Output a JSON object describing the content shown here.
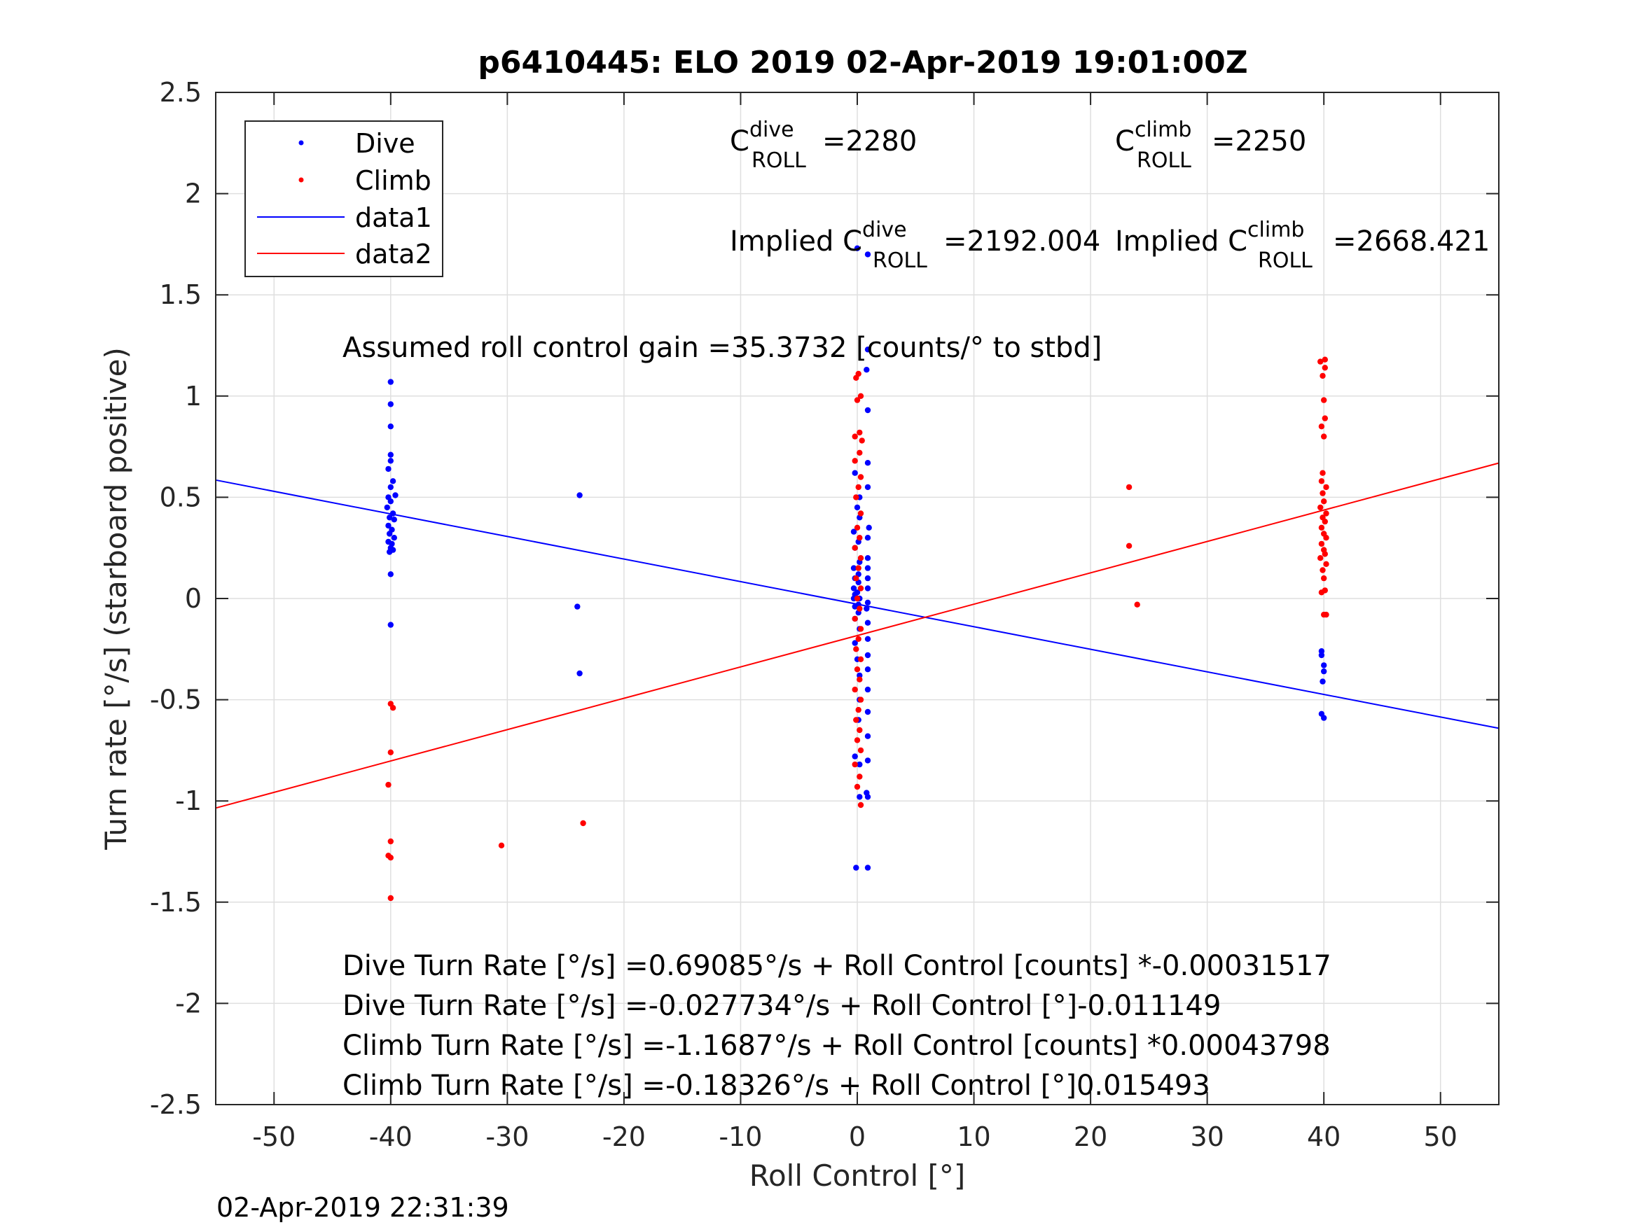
{
  "title": "p6410445: ELO 2019 02-Apr-2019 19:01:00Z",
  "timestamp": "02-Apr-2019 22:31:39",
  "annotations": {
    "c_roll_dive": {
      "base": "C",
      "sup": "dive",
      "sub": "ROLL",
      "value": "=2280"
    },
    "c_roll_climb": {
      "base": "C",
      "sup": "climb",
      "sub": "ROLL",
      "value": "=2250"
    },
    "implied_dive": {
      "prefix": "Implied C",
      "sup": "dive",
      "sub": "ROLL",
      "value": "=2192.004"
    },
    "implied_climb": {
      "prefix": "Implied C",
      "sup": "climb",
      "sub": "ROLL",
      "value": "=2668.421"
    },
    "gain": "Assumed roll control gain =35.3732 [counts/° to stbd]",
    "fit_lines": [
      "Dive Turn Rate [°/s] =0.69085°/s + Roll Control [counts] *-0.00031517",
      "Dive Turn Rate [°/s] =-0.027734°/s + Roll Control [°]-0.011149",
      "Climb Turn Rate [°/s] =-1.1687°/s + Roll Control [counts] *0.00043798",
      "Climb Turn Rate [°/s] =-0.18326°/s + Roll Control [°]0.015493"
    ]
  },
  "colors": {
    "dive": "#0000ff",
    "climb": "#ff0000",
    "grid": "#dfdfdf",
    "axis": "#262626"
  },
  "chart_data": {
    "type": "scatter",
    "title": "p6410445: ELO 2019 02-Apr-2019 19:01:00Z",
    "xlabel": "Roll Control [°]",
    "ylabel": "Turn rate [°/s] (starboard positive)",
    "xlim": [
      -55,
      55
    ],
    "ylim": [
      -2.5,
      2.5
    ],
    "xticks": [
      -50,
      -40,
      -30,
      -20,
      -10,
      0,
      10,
      20,
      30,
      40,
      50
    ],
    "xtick_labels": [
      "-50",
      "-40",
      "-30",
      "-20",
      "-10",
      "0",
      "10",
      "20",
      "30",
      "40",
      "50"
    ],
    "yticks": [
      2.5,
      2,
      1.5,
      1,
      0.5,
      0,
      -0.5,
      -1,
      -1.5,
      -2,
      -2.5
    ],
    "ytick_labels": [
      "2.5",
      "2",
      "1.5",
      "1",
      "0.5",
      "0",
      "-0.5",
      "-1",
      "-1.5",
      "-2",
      "-2.5"
    ],
    "grid": true,
    "legend_position": "top-left",
    "legend": [
      "Dive",
      "Climb",
      "data1",
      "data2"
    ],
    "series": [
      {
        "name": "Dive",
        "kind": "points",
        "color": "#0000ff",
        "points": [
          [
            -40,
            1.07
          ],
          [
            -40,
            0.96
          ],
          [
            -40,
            0.85
          ],
          [
            -40,
            0.71
          ],
          [
            -40,
            0.68
          ],
          [
            -40.2,
            0.64
          ],
          [
            -39.8,
            0.58
          ],
          [
            -40,
            0.55
          ],
          [
            -39.6,
            0.51
          ],
          [
            -40.2,
            0.5
          ],
          [
            -40,
            0.48
          ],
          [
            -40.3,
            0.45
          ],
          [
            -39.8,
            0.42
          ],
          [
            -40.1,
            0.4
          ],
          [
            -39.7,
            0.39
          ],
          [
            -40.2,
            0.36
          ],
          [
            -39.9,
            0.34
          ],
          [
            -40.1,
            0.32
          ],
          [
            -39.7,
            0.3
          ],
          [
            -40.2,
            0.28
          ],
          [
            -39.9,
            0.27
          ],
          [
            -40,
            0.25
          ],
          [
            -39.8,
            0.24
          ],
          [
            -40.1,
            0.23
          ],
          [
            -40,
            0.12
          ],
          [
            -40,
            -0.13
          ],
          [
            -23.8,
            0.51
          ],
          [
            -24,
            -0.04
          ],
          [
            -23.8,
            -0.37
          ],
          [
            0,
            1.73
          ],
          [
            0.9,
            1.7
          ],
          [
            0.9,
            1.23
          ],
          [
            0.8,
            1.13
          ],
          [
            0.9,
            0.93
          ],
          [
            0.9,
            0.67
          ],
          [
            -0.2,
            0.62
          ],
          [
            0.9,
            0.55
          ],
          [
            0.2,
            0.5
          ],
          [
            0,
            0.45
          ],
          [
            0.2,
            0.4
          ],
          [
            1,
            0.35
          ],
          [
            -0.3,
            0.33
          ],
          [
            0.9,
            0.3
          ],
          [
            0.1,
            0.28
          ],
          [
            -0.2,
            0.25
          ],
          [
            0.9,
            0.2
          ],
          [
            0.2,
            0.18
          ],
          [
            -0.3,
            0.15
          ],
          [
            0.9,
            0.15
          ],
          [
            0.1,
            0.12
          ],
          [
            -0.2,
            0.1
          ],
          [
            0.9,
            0.1
          ],
          [
            0.1,
            0.08
          ],
          [
            -0.3,
            0.05
          ],
          [
            0.9,
            0.05
          ],
          [
            0,
            0.03
          ],
          [
            -0.2,
            0.02
          ],
          [
            0.2,
            0.0
          ],
          [
            -0.3,
            0.0
          ],
          [
            0.9,
            -0.02
          ],
          [
            0.1,
            -0.03
          ],
          [
            -0.2,
            -0.04
          ],
          [
            0.8,
            -0.05
          ],
          [
            0.1,
            -0.07
          ],
          [
            -0.2,
            -0.1
          ],
          [
            0.9,
            -0.12
          ],
          [
            0.2,
            -0.15
          ],
          [
            0.9,
            -0.2
          ],
          [
            -0.2,
            -0.22
          ],
          [
            0.9,
            -0.28
          ],
          [
            0,
            -0.3
          ],
          [
            0.9,
            -0.35
          ],
          [
            0.2,
            -0.38
          ],
          [
            0.9,
            -0.45
          ],
          [
            0.2,
            -0.5
          ],
          [
            0.9,
            -0.56
          ],
          [
            0.1,
            -0.6
          ],
          [
            0.9,
            -0.68
          ],
          [
            -0.2,
            -0.78
          ],
          [
            0.9,
            -0.8
          ],
          [
            0.2,
            -0.82
          ],
          [
            0.8,
            -0.96
          ],
          [
            0.2,
            -0.98
          ],
          [
            0.9,
            -0.98
          ],
          [
            -0.1,
            -1.33
          ],
          [
            0.9,
            -1.33
          ],
          [
            39.8,
            -0.26
          ],
          [
            39.8,
            -0.28
          ],
          [
            40,
            -0.33
          ],
          [
            40,
            -0.36
          ],
          [
            39.9,
            -0.41
          ],
          [
            39.8,
            -0.57
          ],
          [
            40,
            -0.59
          ]
        ]
      },
      {
        "name": "Climb",
        "kind": "points",
        "color": "#ff0000",
        "points": [
          [
            -40,
            -0.52
          ],
          [
            -39.8,
            -0.54
          ],
          [
            -40,
            -0.76
          ],
          [
            -40.2,
            -0.92
          ],
          [
            -40,
            -1.2
          ],
          [
            -40.2,
            -1.27
          ],
          [
            -40,
            -1.28
          ],
          [
            -40,
            -1.48
          ],
          [
            -30.5,
            -1.22
          ],
          [
            -23.5,
            -1.11
          ],
          [
            0.1,
            1.11
          ],
          [
            -0.1,
            1.09
          ],
          [
            0.3,
            1.0
          ],
          [
            0,
            0.98
          ],
          [
            0.2,
            0.82
          ],
          [
            -0.2,
            0.8
          ],
          [
            0.4,
            0.78
          ],
          [
            0.2,
            0.72
          ],
          [
            -0.2,
            0.68
          ],
          [
            0.3,
            0.6
          ],
          [
            0.1,
            0.55
          ],
          [
            -0.1,
            0.5
          ],
          [
            0.3,
            0.42
          ],
          [
            0,
            0.35
          ],
          [
            0.2,
            0.3
          ],
          [
            -0.2,
            0.25
          ],
          [
            0.3,
            0.2
          ],
          [
            0.1,
            0.15
          ],
          [
            -0.1,
            0.1
          ],
          [
            0.3,
            0.05
          ],
          [
            0,
            0.0
          ],
          [
            0.2,
            -0.05
          ],
          [
            -0.2,
            -0.1
          ],
          [
            0.3,
            -0.15
          ],
          [
            0.1,
            -0.2
          ],
          [
            -0.1,
            -0.25
          ],
          [
            0.3,
            -0.3
          ],
          [
            0,
            -0.35
          ],
          [
            0.2,
            -0.4
          ],
          [
            -0.2,
            -0.45
          ],
          [
            0.3,
            -0.5
          ],
          [
            0.1,
            -0.55
          ],
          [
            -0.1,
            -0.6
          ],
          [
            0.2,
            -0.65
          ],
          [
            0,
            -0.7
          ],
          [
            0.3,
            -0.75
          ],
          [
            -0.2,
            -0.82
          ],
          [
            0.2,
            -0.88
          ],
          [
            0,
            -0.93
          ],
          [
            0.3,
            -1.02
          ],
          [
            23.3,
            0.55
          ],
          [
            23.3,
            0.26
          ],
          [
            24,
            -0.03
          ],
          [
            40.1,
            1.18
          ],
          [
            39.7,
            1.17
          ],
          [
            40.1,
            1.14
          ],
          [
            39.9,
            1.1
          ],
          [
            40,
            0.98
          ],
          [
            40.1,
            0.89
          ],
          [
            39.8,
            0.85
          ],
          [
            40,
            0.8
          ],
          [
            39.9,
            0.62
          ],
          [
            39.8,
            0.58
          ],
          [
            40.2,
            0.55
          ],
          [
            39.9,
            0.52
          ],
          [
            40,
            0.48
          ],
          [
            39.7,
            0.45
          ],
          [
            40.2,
            0.42
          ],
          [
            39.9,
            0.4
          ],
          [
            40.1,
            0.38
          ],
          [
            39.8,
            0.35
          ],
          [
            40,
            0.32
          ],
          [
            40.2,
            0.3
          ],
          [
            39.8,
            0.27
          ],
          [
            40,
            0.24
          ],
          [
            40.1,
            0.22
          ],
          [
            39.7,
            0.2
          ],
          [
            40.2,
            0.17
          ],
          [
            39.9,
            0.14
          ],
          [
            40,
            0.1
          ],
          [
            40.1,
            0.04
          ],
          [
            39.8,
            0.03
          ],
          [
            40,
            -0.08
          ],
          [
            40.2,
            -0.08
          ]
        ]
      },
      {
        "name": "data1",
        "kind": "line",
        "color": "#0000ff",
        "x": [
          -55,
          55
        ],
        "y": [
          0.585,
          -0.641
        ]
      },
      {
        "name": "data2",
        "kind": "line",
        "color": "#ff0000",
        "x": [
          -55,
          55
        ],
        "y": [
          -1.035,
          0.669
        ]
      }
    ]
  }
}
